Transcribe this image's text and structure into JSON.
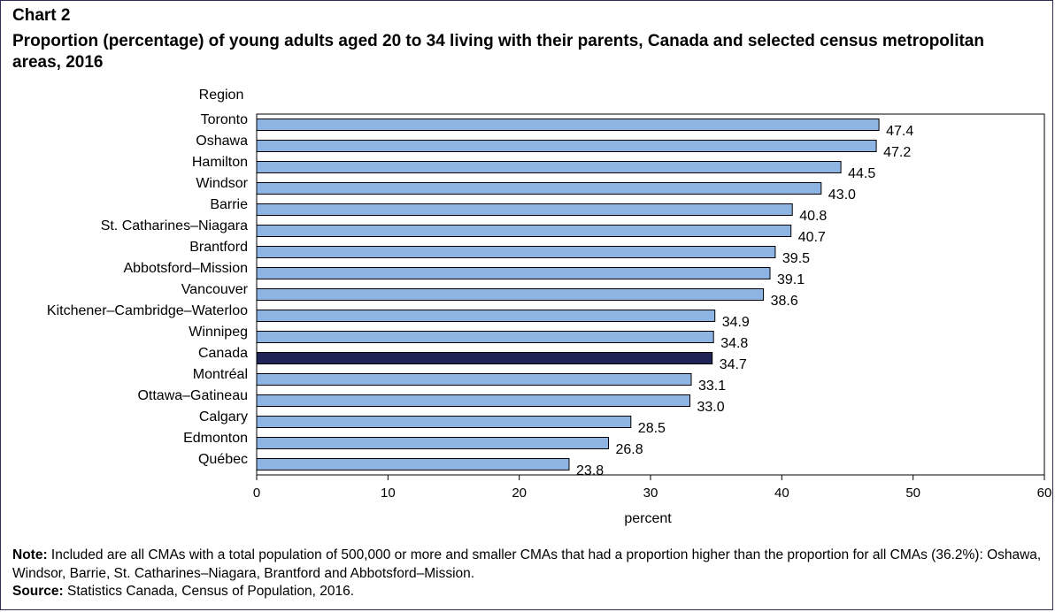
{
  "chart_number": "Chart 2",
  "chart_data": {
    "type": "bar",
    "orientation": "horizontal",
    "title": "Proportion (percentage) of young adults aged 20 to 34 living with their parents, Canada and selected census metropolitan areas, 2016",
    "ylabel": "Region",
    "xlabel": "percent",
    "xlim": [
      0,
      60
    ],
    "xticks": [
      0,
      10,
      20,
      30,
      40,
      50,
      60
    ],
    "categories": [
      "Toronto",
      "Oshawa",
      "Hamilton",
      "Windsor",
      "Barrie",
      "St. Catharines–Niagara",
      "Brantford",
      "Abbotsford–Mission",
      "Vancouver",
      "Kitchener–Cambridge–Waterloo",
      "Winnipeg",
      "Canada",
      "Montréal",
      "Ottawa–Gatineau",
      "Calgary",
      "Edmonton",
      "Québec"
    ],
    "values": [
      47.4,
      47.2,
      44.5,
      43.0,
      40.8,
      40.7,
      39.5,
      39.1,
      38.6,
      34.9,
      34.8,
      34.7,
      33.1,
      33.0,
      28.5,
      26.8,
      23.8
    ],
    "value_labels": [
      "47.4",
      "47.2",
      "44.5",
      "43.0",
      "40.8",
      "40.7",
      "39.5",
      "39.1",
      "38.6",
      "34.9",
      "34.8",
      "34.7",
      "33.1",
      "33.0",
      "28.5",
      "26.8",
      "23.8"
    ],
    "highlight_category": "Canada",
    "colors": {
      "bar": "#8db4e2",
      "highlight": "#1f2356",
      "outline": "#000000"
    }
  },
  "footer": {
    "note_label": "Note:",
    "note_text": " Included are all CMAs with a total population of 500,000 or more and smaller CMAs that had a proportion higher than the proportion for all CMAs (36.2%): Oshawa, Windsor, Barrie, St. Catharines–Niagara, Brantford and Abbotsford–Mission.",
    "source_label": "Source:",
    "source_text": " Statistics Canada, Census of Population, 2016."
  }
}
